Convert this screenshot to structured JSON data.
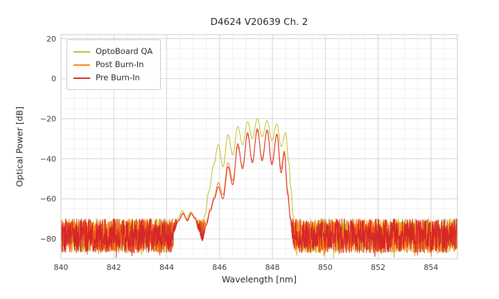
{
  "chart_data": {
    "type": "line",
    "title": "D4624 V20639 Ch. 2",
    "xlabel": "Wavelength [nm]",
    "ylabel": "Optical Power [dB]",
    "xlim": [
      840,
      855
    ],
    "ylim": [
      -90,
      22
    ],
    "xticks": [
      840,
      842,
      844,
      846,
      848,
      850,
      852,
      854
    ],
    "yticks": [
      20,
      0,
      -20,
      -40,
      -60,
      -80
    ],
    "x_minor_step": 0.5,
    "y_minor_step": 5,
    "grid": true,
    "legend_position": "upper left",
    "noise_floor_db": {
      "top": -70,
      "bottom": -87
    },
    "signal_band_nm": [
      844.2,
      848.9
    ],
    "series": [
      {
        "name": "OptoBoard QA",
        "color": "#bcbd22",
        "noise": {
          "seed": 11,
          "base": -70,
          "range": 17
        },
        "signal_points": [
          [
            844.2,
            -76
          ],
          [
            844.4,
            -70
          ],
          [
            844.6,
            -66
          ],
          [
            844.75,
            -70
          ],
          [
            844.9,
            -66.5
          ],
          [
            845.05,
            -69
          ],
          [
            845.2,
            -75
          ],
          [
            845.32,
            -80
          ],
          [
            845.45,
            -68
          ],
          [
            845.6,
            -56
          ],
          [
            845.78,
            -43
          ],
          [
            845.95,
            -33
          ],
          [
            846.13,
            -44
          ],
          [
            846.32,
            -28
          ],
          [
            846.5,
            -38
          ],
          [
            846.69,
            -24
          ],
          [
            846.87,
            -33
          ],
          [
            847.06,
            -21.5
          ],
          [
            847.24,
            -30
          ],
          [
            847.43,
            -20
          ],
          [
            847.61,
            -29
          ],
          [
            847.8,
            -21
          ],
          [
            847.98,
            -31
          ],
          [
            848.17,
            -22.5
          ],
          [
            848.33,
            -34
          ],
          [
            848.5,
            -27
          ],
          [
            848.62,
            -42
          ],
          [
            848.7,
            -55
          ],
          [
            848.78,
            -68
          ],
          [
            848.86,
            -78
          ]
        ]
      },
      {
        "name": "Post Burn-In",
        "color": "#ff7f0e",
        "noise": {
          "seed": 23,
          "base": -70,
          "range": 17
        },
        "signal_points": [
          [
            844.25,
            -76.5
          ],
          [
            844.45,
            -70.5
          ],
          [
            844.62,
            -67
          ],
          [
            844.78,
            -70.5
          ],
          [
            844.93,
            -67
          ],
          [
            845.08,
            -69.5
          ],
          [
            845.22,
            -75.5
          ],
          [
            845.35,
            -80
          ],
          [
            845.5,
            -72
          ],
          [
            845.65,
            -65
          ],
          [
            845.8,
            -59
          ],
          [
            845.95,
            -52
          ],
          [
            846.13,
            -58
          ],
          [
            846.32,
            -42
          ],
          [
            846.5,
            -51
          ],
          [
            846.69,
            -34
          ],
          [
            846.87,
            -44
          ],
          [
            847.06,
            -28
          ],
          [
            847.24,
            -41
          ],
          [
            847.43,
            -26
          ],
          [
            847.61,
            -40
          ],
          [
            847.8,
            -25.5
          ],
          [
            847.98,
            -42
          ],
          [
            848.17,
            -27.5
          ],
          [
            848.33,
            -45
          ],
          [
            848.45,
            -36
          ],
          [
            848.58,
            -56
          ],
          [
            848.68,
            -69
          ],
          [
            848.76,
            -79
          ]
        ]
      },
      {
        "name": "Pre Burn-In",
        "color": "#d62728",
        "noise": {
          "seed": 37,
          "base": -70,
          "range": 17
        },
        "signal_points": [
          [
            844.25,
            -77
          ],
          [
            844.45,
            -71
          ],
          [
            844.62,
            -67.5
          ],
          [
            844.78,
            -71
          ],
          [
            844.93,
            -67.5
          ],
          [
            845.08,
            -70
          ],
          [
            845.22,
            -76
          ],
          [
            845.35,
            -81
          ],
          [
            845.5,
            -73
          ],
          [
            845.65,
            -66
          ],
          [
            845.8,
            -60
          ],
          [
            845.95,
            -54
          ],
          [
            846.13,
            -60
          ],
          [
            846.32,
            -44
          ],
          [
            846.5,
            -53
          ],
          [
            846.69,
            -32.5
          ],
          [
            846.87,
            -45
          ],
          [
            847.06,
            -27
          ],
          [
            847.24,
            -42
          ],
          [
            847.43,
            -25
          ],
          [
            847.61,
            -41
          ],
          [
            847.8,
            -26
          ],
          [
            847.98,
            -43
          ],
          [
            848.17,
            -28
          ],
          [
            848.33,
            -47
          ],
          [
            848.45,
            -37
          ],
          [
            848.58,
            -58
          ],
          [
            848.68,
            -70
          ],
          [
            848.76,
            -80
          ]
        ]
      }
    ]
  }
}
